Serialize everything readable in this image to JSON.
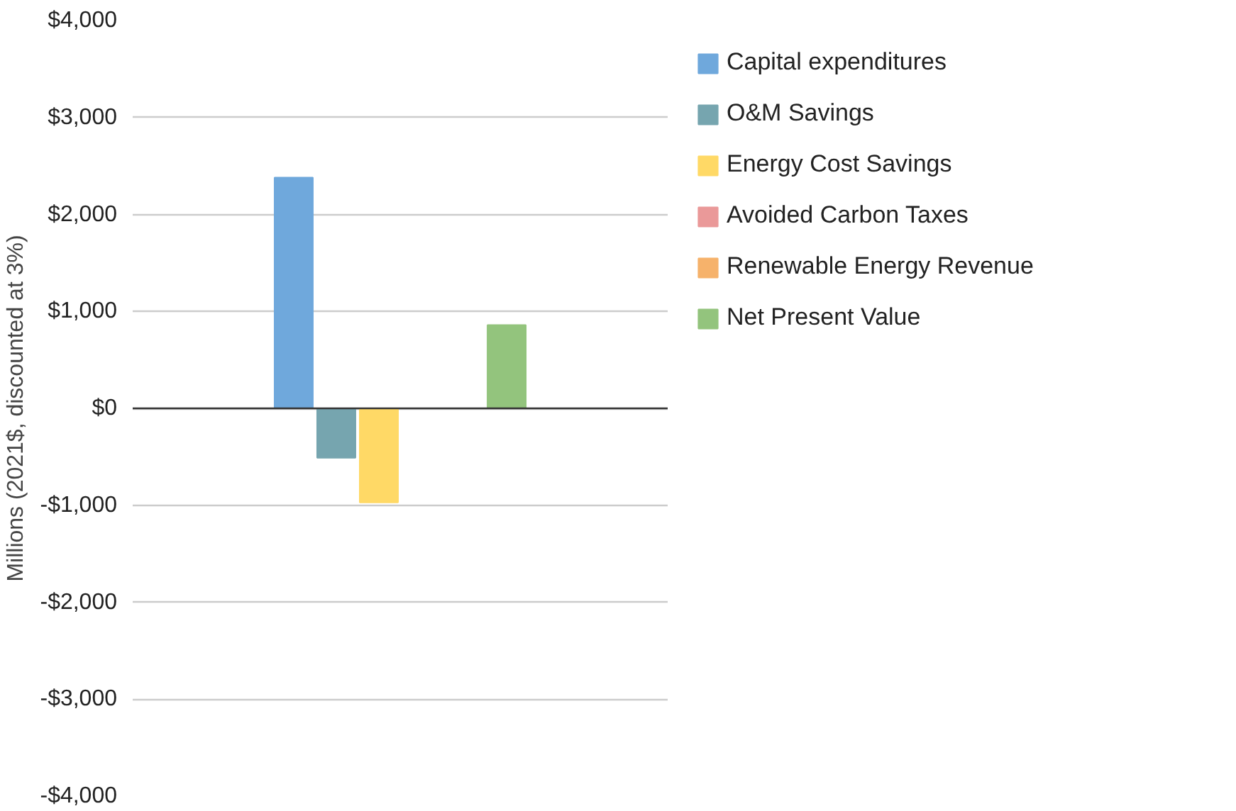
{
  "chart_data": {
    "type": "bar",
    "ylabel": "Millions (2021$, discounted at 3%)",
    "categories": [
      null
    ],
    "series": [
      {
        "name": "Capital expenditures",
        "color": "#6fa8dc",
        "values": [
          2380
        ]
      },
      {
        "name": "O&M Savings",
        "color": "#76a5af",
        "values": [
          -510
        ]
      },
      {
        "name": "Energy Cost Savings",
        "color": "#ffd966",
        "values": [
          -970
        ]
      },
      {
        "name": "Avoided Carbon Taxes",
        "color": "#ea9999",
        "values": [
          0
        ]
      },
      {
        "name": "Renewable Energy Revenue",
        "color": "#f6b26b",
        "values": [
          0
        ]
      },
      {
        "name": "Net Present Value",
        "color": "#93c47d",
        "values": [
          860
        ]
      }
    ],
    "ylim": [
      -4000,
      4000
    ],
    "yticks": [
      {
        "value": -4000,
        "label": "-$4,000"
      },
      {
        "value": -3000,
        "label": "-$3,000"
      },
      {
        "value": -2000,
        "label": "-$2,000"
      },
      {
        "value": -1000,
        "label": "-$1,000"
      },
      {
        "value": 0,
        "label": "$0"
      },
      {
        "value": 1000,
        "label": "$1,000"
      },
      {
        "value": 2000,
        "label": "$2,000"
      },
      {
        "value": 3000,
        "label": "$3,000"
      },
      {
        "value": 4000,
        "label": "$4,000"
      }
    ],
    "grid": "y",
    "legend": "right"
  }
}
